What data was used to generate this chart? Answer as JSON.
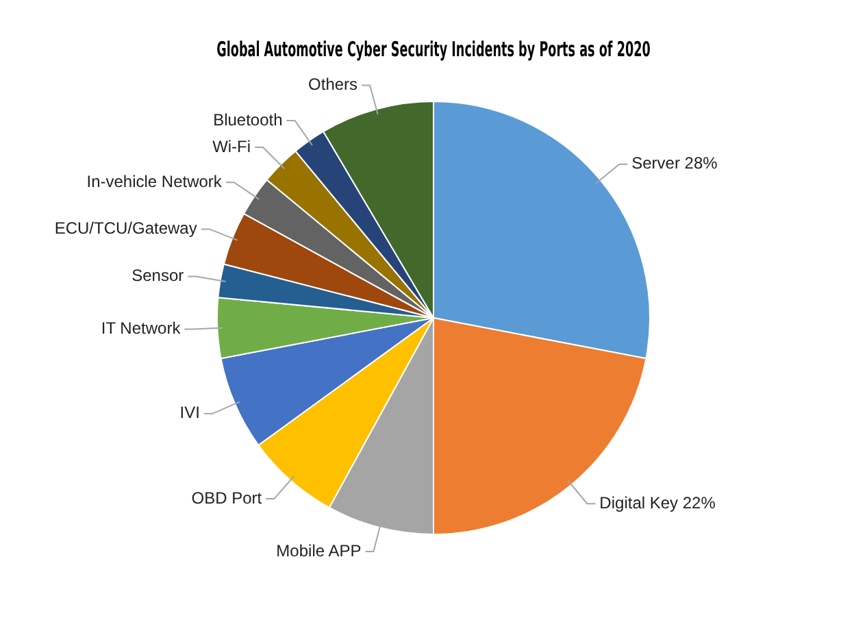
{
  "chart_data": {
    "type": "pie",
    "title": "Global Automotive Cyber Security Incidents by Ports as of 2020",
    "categories": [
      "Server",
      "Digital Key",
      "Mobile APP",
      "OBD Port",
      "IVI",
      "IT Network",
      "Sensor",
      "ECU/TCU/Gateway",
      "In-vehicle Network",
      "Wi-Fi",
      "Bluetooth",
      "Others"
    ],
    "values": [
      28,
      22,
      8,
      7,
      7,
      4.5,
      2.5,
      4,
      3,
      3,
      2.5,
      8.5
    ],
    "value_labels": [
      "28%",
      "22%",
      null,
      null,
      null,
      null,
      null,
      null,
      null,
      null,
      null,
      null
    ],
    "colors": [
      "#5b9bd5",
      "#ed7d31",
      "#a5a5a5",
      "#ffc000",
      "#4472c4",
      "#70ad47",
      "#255e91",
      "#9e480e",
      "#636363",
      "#997300",
      "#264478",
      "#43682b"
    ],
    "legend": false
  }
}
